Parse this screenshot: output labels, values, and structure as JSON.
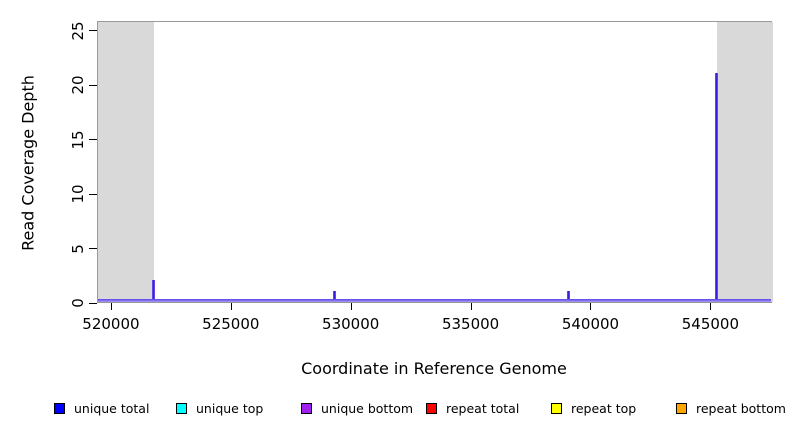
{
  "chart_data": {
    "type": "line",
    "subtype": "coverage-spikes",
    "title": "",
    "xlabel": "Coordinate in Reference Genome",
    "ylabel": "Read Coverage Depth",
    "xlim": [
      519420,
      547570
    ],
    "ylim": [
      0,
      25.9
    ],
    "grid": false,
    "x_ticks": [
      {
        "value": 520000,
        "label": "520000"
      },
      {
        "value": 525000,
        "label": "525000"
      },
      {
        "value": 530000,
        "label": "530000"
      },
      {
        "value": 535000,
        "label": "535000"
      },
      {
        "value": 540000,
        "label": "540000"
      },
      {
        "value": 545000,
        "label": "545000"
      }
    ],
    "y_ticks": [
      {
        "value": 0,
        "label": "0"
      },
      {
        "value": 5,
        "label": "5"
      },
      {
        "value": 10,
        "label": "10"
      },
      {
        "value": 15,
        "label": "15"
      },
      {
        "value": 20,
        "label": "20"
      },
      {
        "value": 25,
        "label": "25"
      }
    ],
    "shaded_regions": [
      {
        "x0": 519420,
        "x1": 521750
      },
      {
        "x0": 545230,
        "x1": 547570
      }
    ],
    "shaded_color": "#d9d9d9",
    "spikes": [
      {
        "x": 521750,
        "y": 2
      },
      {
        "x": 529300,
        "y": 1
      },
      {
        "x": 539060,
        "y": 1
      },
      {
        "x": 545230,
        "y": 21
      }
    ],
    "spike_color": "#3a1ee0",
    "spike_edge_color": "#8d77f2",
    "baseline_color_top": "#5a43e6",
    "baseline_color_bottom": "#a89af5",
    "box_color": "#9a9a9a",
    "legend_position": "bottom",
    "legend": [
      {
        "label": "unique total",
        "color": "#0000ff"
      },
      {
        "label": "unique top",
        "color": "#00ffff"
      },
      {
        "label": "unique bottom",
        "color": "#a020f0"
      },
      {
        "label": "repeat total",
        "color": "#ff0000"
      },
      {
        "label": "repeat top",
        "color": "#ffff00"
      },
      {
        "label": "repeat bottom",
        "color": "#ffa500"
      }
    ]
  }
}
